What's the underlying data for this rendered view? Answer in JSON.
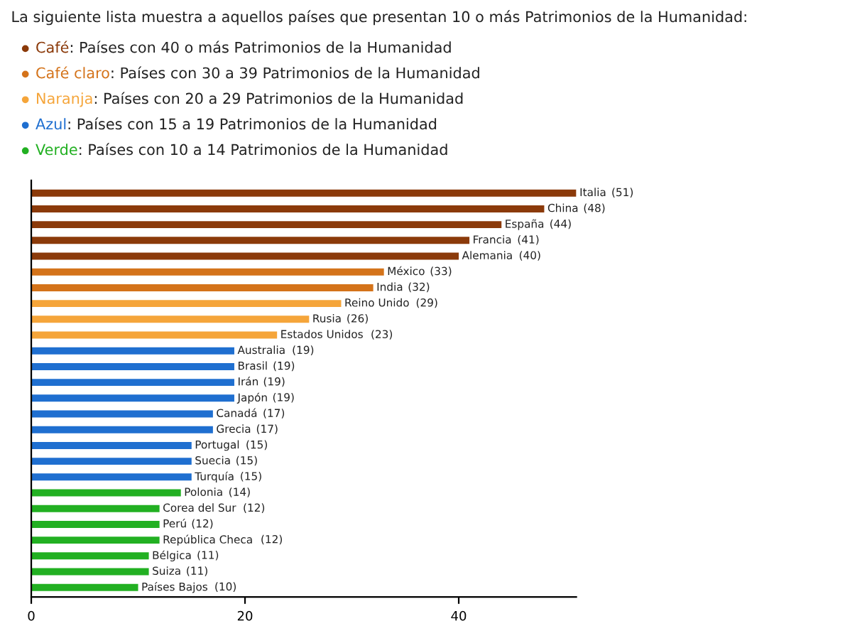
{
  "chart_data": {
    "type": "bar",
    "orientation": "horizontal",
    "title": "La siguiente lista muestra a aquellos países que presentan 10 o más Patrimonios de la Humanidad:",
    "categories": [
      "Italia",
      "China",
      "España",
      "Francia",
      "Alemania",
      "México",
      "India",
      "Reino Unido",
      "Rusia",
      "Estados Unidos",
      "Australia",
      "Brasil",
      "Irán",
      "Japón",
      "Canadá",
      "Grecia",
      "Portugal",
      "Suecia",
      "Turquía",
      "Polonia",
      "Corea del Sur",
      "Perú",
      "República Checa",
      "Bélgica",
      "Suiza",
      "Países Bajos"
    ],
    "series": [
      {
        "name": "Café",
        "color": "#8b3a0a",
        "values": [
          51,
          48,
          44,
          41,
          40,
          null,
          null,
          null,
          null,
          null,
          null,
          null,
          null,
          null,
          null,
          null,
          null,
          null,
          null,
          null,
          null,
          null,
          null,
          null,
          null,
          null
        ]
      },
      {
        "name": "Café claro",
        "color": "#d4731a",
        "values": [
          null,
          null,
          null,
          null,
          null,
          33,
          32,
          null,
          null,
          null,
          null,
          null,
          null,
          null,
          null,
          null,
          null,
          null,
          null,
          null,
          null,
          null,
          null,
          null,
          null,
          null
        ]
      },
      {
        "name": "Naranja",
        "color": "#f5a53a",
        "values": [
          null,
          null,
          null,
          null,
          null,
          null,
          null,
          29,
          26,
          23,
          null,
          null,
          null,
          null,
          null,
          null,
          null,
          null,
          null,
          null,
          null,
          null,
          null,
          null,
          null,
          null
        ]
      },
      {
        "name": "Azul",
        "color": "#1f6fd0",
        "values": [
          null,
          null,
          null,
          null,
          null,
          null,
          null,
          null,
          null,
          null,
          19,
          19,
          19,
          19,
          17,
          17,
          15,
          15,
          15,
          null,
          null,
          null,
          null,
          null,
          null,
          null
        ]
      },
      {
        "name": "Verde",
        "color": "#22b022",
        "values": [
          null,
          null,
          null,
          null,
          null,
          null,
          null,
          null,
          null,
          null,
          null,
          null,
          null,
          null,
          null,
          null,
          null,
          null,
          null,
          14,
          12,
          12,
          12,
          11,
          11,
          10
        ]
      }
    ],
    "annotations": [
      ": Países con 40 o más Patrimonios de la Humanidad",
      ": Países con 30 a 39 Patrimonios de la Humanidad",
      ": Países con 20 a 29 Patrimonios de la Humanidad",
      ": Países con 15 a 19 Patrimonios de la Humanidad",
      ": Países con 10 a 14 Patrimonios de la Humanidad"
    ],
    "value_labels": [
      "(51)",
      "(48)",
      "(44)",
      "(41)",
      "(40)",
      "(33)",
      "(32)",
      "(29)",
      "(26)",
      "(23)",
      "(19)",
      "(19)",
      "(19)",
      "(19)",
      "(17)",
      "(17)",
      "(15)",
      "(15)",
      "(15)",
      "(14)",
      "(12)",
      "(12)",
      "(12)",
      "(11)",
      "(11)",
      "(10)"
    ],
    "xlim": [
      0,
      51
    ],
    "xticks": [
      0,
      20,
      40
    ],
    "tick_labels": "x",
    "legend": "top left"
  }
}
